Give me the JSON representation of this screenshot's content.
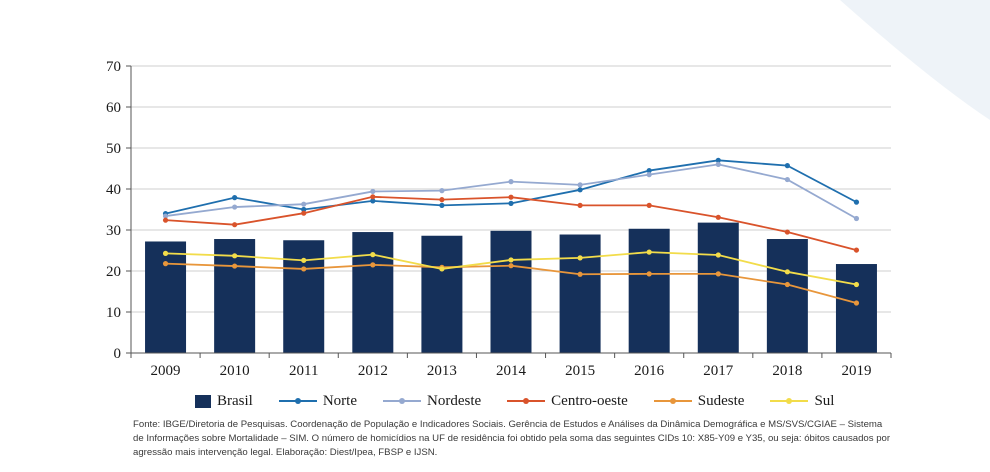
{
  "chart_data": {
    "type": "bar+line",
    "categories": [
      "2009",
      "2010",
      "2011",
      "2012",
      "2013",
      "2014",
      "2015",
      "2016",
      "2017",
      "2018",
      "2019"
    ],
    "ylim": [
      0,
      70
    ],
    "yticks": [
      "0",
      "10",
      "20",
      "30",
      "40",
      "50",
      "60",
      "70"
    ],
    "grid": true,
    "legend_position": "bottom",
    "series": [
      {
        "name": "Brasil",
        "kind": "bar",
        "color": "#15305a",
        "values": [
          27.2,
          27.8,
          27.5,
          29.5,
          28.6,
          29.8,
          28.9,
          30.3,
          31.8,
          27.8,
          21.7
        ]
      },
      {
        "name": "Norte",
        "kind": "line",
        "color": "#1f6fae",
        "values": [
          34.0,
          37.9,
          35.0,
          37.1,
          36.0,
          36.5,
          39.8,
          44.5,
          47.0,
          45.7,
          36.8
        ]
      },
      {
        "name": "Nordeste",
        "kind": "line",
        "color": "#95a9d0",
        "values": [
          33.4,
          35.6,
          36.3,
          39.4,
          39.6,
          41.8,
          41.0,
          43.5,
          46.0,
          42.3,
          32.8
        ]
      },
      {
        "name": "Centro-oeste",
        "kind": "line",
        "color": "#d9532b",
        "values": [
          32.4,
          31.3,
          34.1,
          38.1,
          37.4,
          38.0,
          36.0,
          36.0,
          33.1,
          29.5,
          25.1
        ]
      },
      {
        "name": "Sudeste",
        "kind": "line",
        "color": "#e8963b",
        "values": [
          21.8,
          21.2,
          20.5,
          21.5,
          20.9,
          21.3,
          19.2,
          19.3,
          19.3,
          16.7,
          12.2
        ]
      },
      {
        "name": "Sul",
        "kind": "line",
        "color": "#f2dc4a",
        "values": [
          24.3,
          23.7,
          22.6,
          24.0,
          20.5,
          22.7,
          23.2,
          24.6,
          23.9,
          19.8,
          16.7
        ]
      }
    ]
  },
  "source_note": "Fonte: IBGE/Diretoria de Pesquisas. Coordenação de População e Indicadores Sociais. Gerência de Estudos e Análises da Dinâmica Demográfica e MS/SVS/CGIAE – Sistema de Informações sobre Mortalidade – SIM. O número de homicídios na UF de residência foi obtido pela soma das seguintes CIDs 10: X85-Y09 e Y35, ou seja: óbitos causados por agressão mais intervenção legal. Elaboração: Diest/Ipea, FBSP e IJSN.",
  "colors": {
    "axis": "#555555",
    "grid": "#cfcfcf",
    "background_accent": "#eef3f8"
  }
}
